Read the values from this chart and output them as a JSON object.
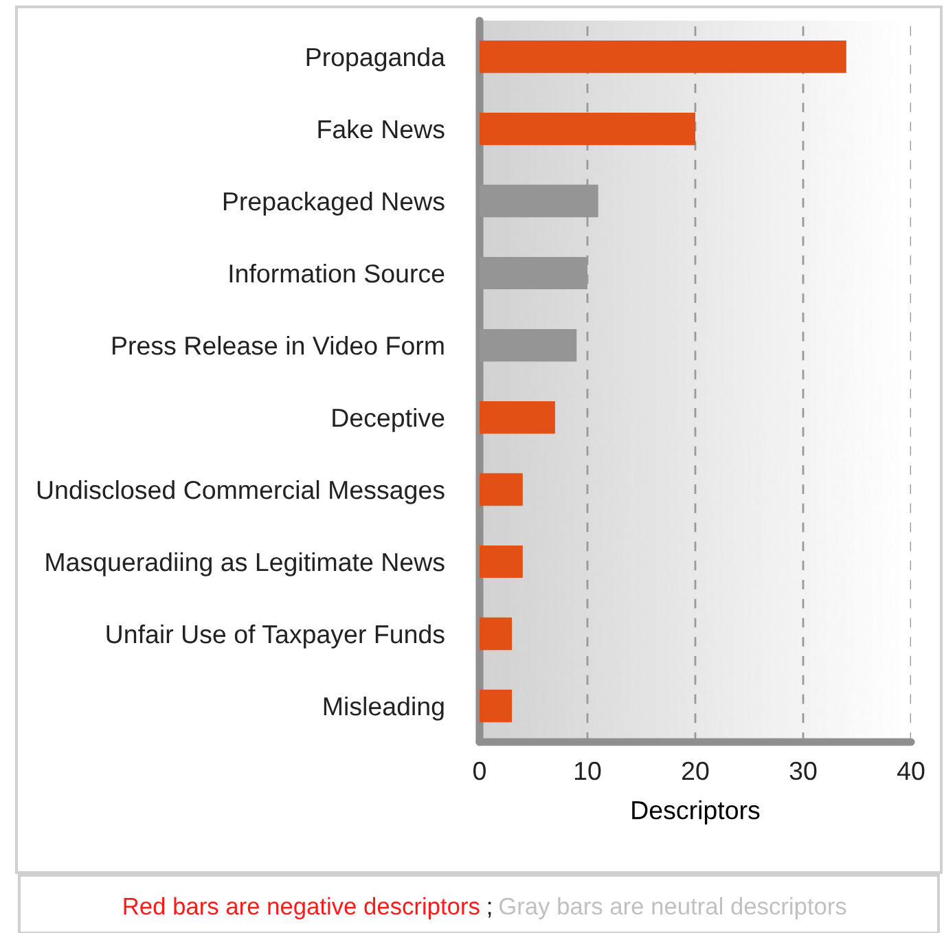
{
  "chart_data": {
    "type": "bar",
    "orientation": "horizontal",
    "xlabel": "Descriptors",
    "categories": [
      "Propaganda",
      "Fake News",
      "Prepackaged News",
      "Information Source",
      "Press Release in Video Form",
      "Deceptive",
      "Undisclosed Commercial Messages",
      "Masqueradiing as Legitimate News",
      "Unfair Use of Taxpayer Funds",
      "Misleading"
    ],
    "values": [
      34,
      20,
      11,
      10,
      9,
      7,
      4,
      4,
      3,
      3
    ],
    "colors": [
      "#e35015",
      "#e35015",
      "#959595",
      "#959595",
      "#959595",
      "#e35015",
      "#e35015",
      "#e35015",
      "#e35015",
      "#e35015"
    ],
    "xlim": [
      0,
      40
    ],
    "xticks": [
      0,
      10,
      20,
      30,
      40
    ],
    "grid": "x",
    "annotations": [
      "Red bars are negative descriptors",
      ";",
      "Gray bars are neutral descriptors"
    ]
  }
}
